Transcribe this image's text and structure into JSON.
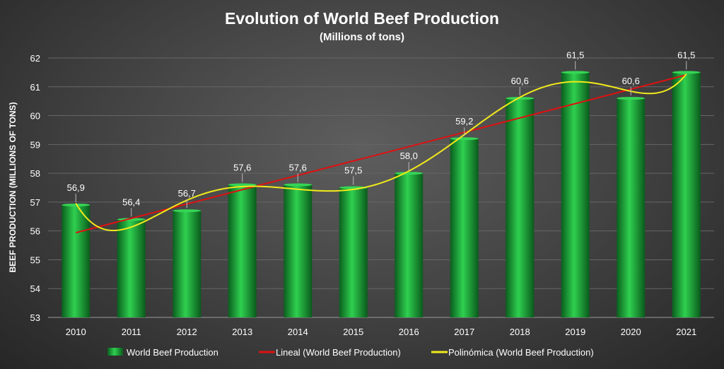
{
  "chart_data": {
    "type": "bar",
    "title": "Evolution of World Beef Production",
    "subtitle": "(Millions of tons)",
    "xlabel": "",
    "ylabel": "BEEF PRODUCTION (MILLIONS OF TONS)",
    "ylim": [
      53,
      62
    ],
    "yticks": [
      "53",
      "54",
      "55",
      "56",
      "57",
      "58",
      "59",
      "60",
      "61",
      "62"
    ],
    "grid": true,
    "legend_position": "bottom",
    "categories": [
      "2010",
      "2011",
      "2012",
      "2013",
      "2014",
      "2015",
      "2016",
      "2017",
      "2018",
      "2019",
      "2020",
      "2021"
    ],
    "series": [
      {
        "name": "World Beef Production",
        "type": "bar",
        "color": "#1db33c",
        "values": [
          56.9,
          56.4,
          56.7,
          57.6,
          57.6,
          57.5,
          58.0,
          59.2,
          60.6,
          61.5,
          60.6,
          61.5
        ],
        "labels": [
          "56,9",
          "56,4",
          "56,7",
          "57,6",
          "57,6",
          "57,5",
          "58,0",
          "59,2",
          "60,6",
          "61,5",
          "60,6",
          "61,5"
        ]
      }
    ],
    "trendlines": [
      {
        "name": "Lineal (World Beef Production)",
        "type": "linear",
        "color": "#e01010"
      },
      {
        "name": "Polinómica (World Beef Production)",
        "type": "polynomial",
        "order": 6,
        "color": "#f2ea1a"
      }
    ]
  }
}
